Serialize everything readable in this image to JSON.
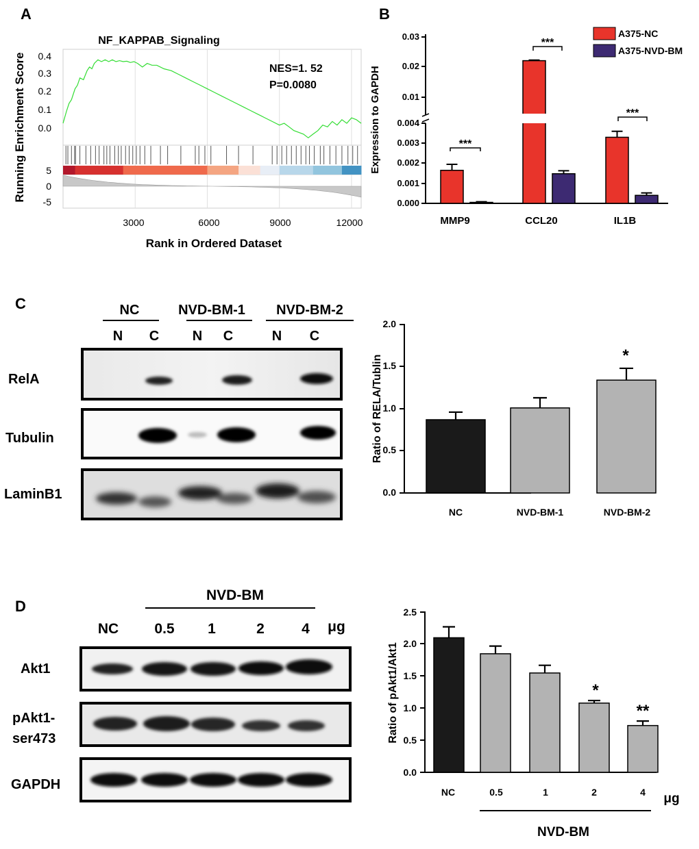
{
  "panel_labels": {
    "a": "A",
    "b": "B",
    "c": "C",
    "d": "D"
  },
  "colors": {
    "red": "#e8342b",
    "purple": "#3d2a72",
    "black": "#1a1a1a",
    "gray": "#b3b3b3",
    "gsea_line": "#33dd33"
  },
  "chart_data": [
    {
      "id": "A",
      "type": "line",
      "title": "NF_KAPPAB_Signaling",
      "xlabel": "Rank in Ordered Dataset",
      "ylabel": "Running Enrichment Score",
      "x_ticks": [
        "3000",
        "6000",
        "9000",
        "12000"
      ],
      "y_ticks": [
        "0.4",
        "0.3",
        "0.2",
        "0.1",
        "0.0"
      ],
      "y_ticks_lower": [
        "5",
        "0",
        "-5"
      ],
      "xlim": [
        0,
        12400
      ],
      "ylim": [
        -0.06,
        0.42
      ],
      "annotations": [
        "NES=1. 52",
        "P=0.0080"
      ],
      "curve_x": [
        0,
        150,
        250,
        350,
        500,
        600,
        700,
        850,
        1000,
        1100,
        1200,
        1300,
        1450,
        1600,
        1750,
        1900,
        2050,
        2200,
        2350,
        2500,
        2650,
        2800,
        2950,
        3100,
        3300,
        3500,
        3700,
        3900,
        4200,
        4500,
        4800,
        5100,
        5400,
        5700,
        6000,
        6300,
        6600,
        6900,
        7200,
        7500,
        7800,
        8100,
        8400,
        8700,
        9000,
        9200,
        9400,
        9600,
        9800,
        10000,
        10200,
        10400,
        10600,
        10800,
        11000,
        11200,
        11400,
        11600,
        11800,
        12000,
        12200,
        12400
      ],
      "curve_y": [
        0.03,
        0.1,
        0.14,
        0.16,
        0.22,
        0.24,
        0.28,
        0.27,
        0.32,
        0.34,
        0.33,
        0.36,
        0.38,
        0.37,
        0.38,
        0.37,
        0.38,
        0.37,
        0.375,
        0.37,
        0.372,
        0.365,
        0.37,
        0.36,
        0.34,
        0.36,
        0.35,
        0.35,
        0.33,
        0.32,
        0.3,
        0.28,
        0.26,
        0.24,
        0.22,
        0.2,
        0.18,
        0.16,
        0.14,
        0.12,
        0.1,
        0.08,
        0.06,
        0.04,
        0.02,
        0.03,
        0.01,
        -0.01,
        -0.02,
        -0.03,
        -0.05,
        -0.03,
        -0.01,
        0.02,
        0.01,
        0.04,
        0.02,
        0.05,
        0.03,
        0.06,
        0.05,
        0.03
      ],
      "hit_ranks": [
        120,
        200,
        350,
        480,
        520,
        700,
        950,
        1150,
        1350,
        1500,
        1700,
        1820,
        1950,
        2150,
        2300,
        2420,
        2600,
        2750,
        2900,
        3050,
        3200,
        3400,
        3650,
        4050,
        4350,
        4900,
        5500,
        5650,
        5900,
        6150,
        6800,
        7300,
        7900,
        8700,
        8900,
        9100,
        9300,
        9500,
        9700,
        9900,
        10100,
        10250,
        10450,
        10700,
        10850,
        11100,
        11350,
        11600,
        11850,
        12050,
        12250
      ],
      "rank_bar_colors": [
        "#b2182b",
        "#d6312f",
        "#ef6a4c",
        "#f4a582",
        "#fbe0d6",
        "#e8eef6",
        "#b8d7ea",
        "#92c5de",
        "#4393c3"
      ],
      "rank_bar_bounds": [
        0,
        500,
        2500,
        6000,
        7300,
        8200,
        9000,
        10400,
        11600,
        12400
      ]
    },
    {
      "id": "B",
      "type": "bar",
      "categories": [
        "MMP9",
        "CCL20",
        "IL1B"
      ],
      "series": [
        {
          "name": "A375-NC",
          "values": [
            0.00165,
            0.022,
            0.0033
          ],
          "errors": [
            0.0003,
            0.0002,
            0.0003
          ]
        },
        {
          "name": "A375-NVD-BM",
          "values": [
            5e-05,
            0.00148,
            0.0004
          ],
          "errors": [
            3e-05,
            0.00015,
            0.00012
          ]
        }
      ],
      "ylabel": "Expression to GAPDH",
      "y_ticks_lower": [
        "0.000",
        "0.001",
        "0.002",
        "0.003",
        "0.004"
      ],
      "y_ticks_upper": [
        "0.01",
        "0.02",
        "0.03"
      ],
      "ylim_lower": [
        0,
        0.004
      ],
      "ylim_upper": [
        0.004,
        0.03
      ],
      "significance": [
        "***",
        "***",
        "***"
      ],
      "legend_position": "top-right"
    },
    {
      "id": "C",
      "type": "bar",
      "categories": [
        "NC",
        "NVD-BM-1",
        "NVD-BM-2"
      ],
      "values": [
        0.87,
        1.01,
        1.34
      ],
      "errors": [
        0.09,
        0.12,
        0.14
      ],
      "ylabel": "Ratio of RELA/Tublin",
      "y_ticks": [
        "0.0",
        "0.5",
        "1.0",
        "1.5",
        "2.0"
      ],
      "ylim": [
        0,
        2.0
      ],
      "significance": [
        "",
        "",
        "*"
      ]
    },
    {
      "id": "D",
      "type": "bar",
      "categories": [
        "NC",
        "0.5",
        "1",
        "2",
        "4"
      ],
      "values": [
        2.1,
        1.85,
        1.55,
        1.08,
        0.73
      ],
      "errors": [
        0.17,
        0.12,
        0.12,
        0.04,
        0.07
      ],
      "ylabel": "Ratio of pAkt1/Akt1",
      "y_ticks": [
        "0.0",
        "0.5",
        "1.0",
        "1.5",
        "2.0",
        "2.5"
      ],
      "ylim": [
        0,
        2.5
      ],
      "unit_label": "μg",
      "group_label": "NVD-BM",
      "significance": [
        "",
        "",
        "",
        "*",
        "**"
      ]
    }
  ],
  "blot_c": {
    "groups": [
      "NC",
      "NVD-BM-1",
      "NVD-BM-2"
    ],
    "fractions": [
      "N",
      "C",
      "N",
      "C",
      "N",
      "C"
    ],
    "rows": [
      "RelA",
      "Tubulin",
      "LaminB1"
    ]
  },
  "blot_d": {
    "group_label": "NVD-BM",
    "lanes": [
      "NC",
      "0.5",
      "1",
      "2",
      "4"
    ],
    "unit": "μg",
    "rows": [
      "Akt1",
      "pAkt1-",
      "ser473",
      "GAPDH"
    ]
  }
}
